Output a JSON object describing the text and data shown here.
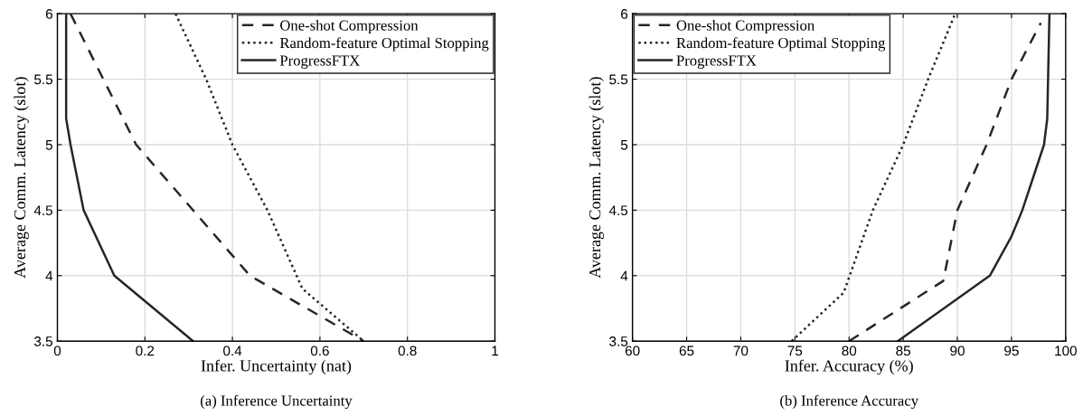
{
  "chart_data": [
    {
      "type": "line",
      "title": "(a) Inference Uncertainty",
      "xlabel": "Infer. Uncertainty (nat)",
      "ylabel": "Average Comm. Latency (slot)",
      "xlim": [
        0,
        1
      ],
      "xticks": [
        0,
        0.2,
        0.4,
        0.6,
        0.8,
        1
      ],
      "ylim": [
        3.5,
        6
      ],
      "yticks": [
        3.5,
        4,
        4.5,
        5,
        5.5,
        6
      ],
      "grid": true,
      "legend": "top right",
      "marker": "none",
      "series": [
        {
          "name": "One-shot Compression",
          "color": "#262626",
          "line_style": "dashed",
          "x": [
            0.03,
            0.18,
            0.44,
            0.7
          ],
          "values": [
            6,
            5,
            4,
            3.5
          ]
        },
        {
          "name": "Random-feature Optimal Stopping",
          "color": "#262626",
          "line_style": "dotted",
          "x": [
            0.27,
            0.34,
            0.4,
            0.48,
            0.56,
            0.7
          ],
          "values": [
            6,
            5.5,
            5,
            4.5,
            3.9,
            3.5
          ]
        },
        {
          "name": "ProgressFTX",
          "color": "#262626",
          "line_style": "solid",
          "x": [
            0.02,
            0.02,
            0.03,
            0.06,
            0.13,
            0.31
          ],
          "values": [
            6,
            5.2,
            5,
            4.5,
            4,
            3.5
          ]
        }
      ]
    },
    {
      "type": "line",
      "title": "(b) Inference Accuracy",
      "xlabel": "Infer. Accuracy (%)",
      "ylabel": "Average Comm. Latency (slot)",
      "xlim": [
        60,
        100
      ],
      "xticks": [
        60,
        65,
        70,
        75,
        80,
        85,
        90,
        95,
        100
      ],
      "ylim": [
        3.5,
        6
      ],
      "yticks": [
        3.5,
        4,
        4.5,
        5,
        5.5,
        6
      ],
      "grid": true,
      "legend": "top left",
      "marker": "none",
      "series": [
        {
          "name": "One-shot Compression",
          "color": "#262626",
          "line_style": "dashed",
          "x": [
            80,
            88.7,
            90,
            92.7,
            95,
            97.7
          ],
          "values": [
            3.5,
            3.96,
            4.5,
            5,
            5.5,
            5.93
          ]
        },
        {
          "name": "Random-feature Optimal Stopping",
          "color": "#262626",
          "line_style": "dotted",
          "x": [
            74.7,
            79.5,
            82.2,
            85,
            87.3,
            89.8
          ],
          "values": [
            3.5,
            3.87,
            4.5,
            5,
            5.5,
            6
          ]
        },
        {
          "name": "ProgressFTX",
          "color": "#262626",
          "line_style": "solid",
          "x": [
            84.5,
            93,
            95,
            96,
            98,
            98.3,
            98.5
          ],
          "values": [
            3.5,
            4,
            4.3,
            4.5,
            5,
            5.2,
            6
          ]
        }
      ]
    }
  ]
}
